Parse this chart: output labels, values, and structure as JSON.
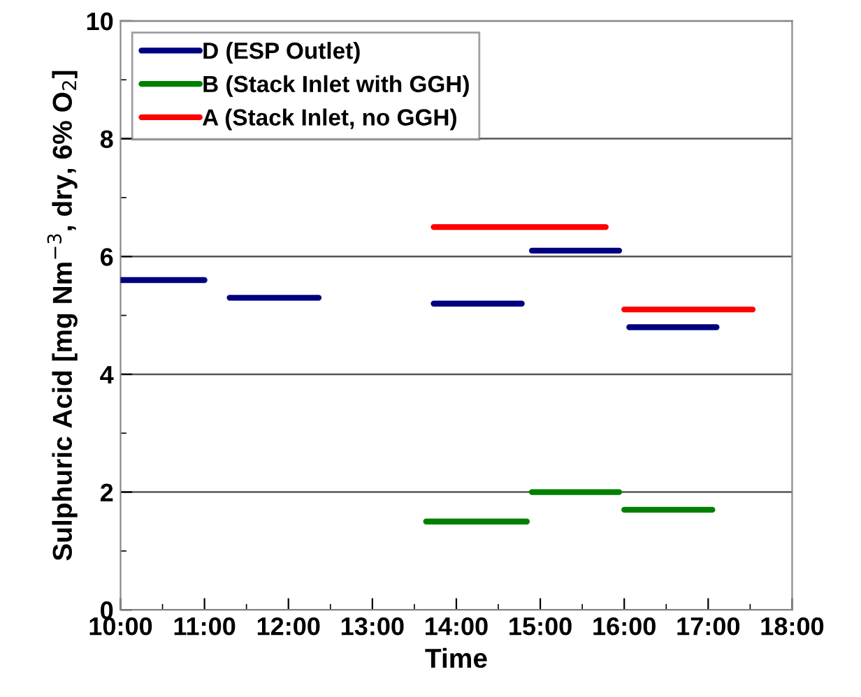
{
  "chart_data": {
    "type": "line",
    "xlabel": "Time",
    "ylabel": "Sulphuric Acid [mg Nm$^{−3}$, dry, 6% O$_{2}$]",
    "xlim": [
      10,
      18
    ],
    "xticks": [
      {
        "value": 10,
        "label": "10:00"
      },
      {
        "value": 11,
        "label": "11:00"
      },
      {
        "value": 12,
        "label": "12:00"
      },
      {
        "value": 13,
        "label": "13:00"
      },
      {
        "value": 14,
        "label": "14:00"
      },
      {
        "value": 15,
        "label": "15:00"
      },
      {
        "value": 16,
        "label": "16:00"
      },
      {
        "value": 17,
        "label": "17:00"
      },
      {
        "value": 18,
        "label": "18:00"
      }
    ],
    "ylim": [
      0,
      10
    ],
    "yticks": [
      0,
      2,
      4,
      6,
      8,
      10
    ],
    "grid": "y",
    "legend": "top left",
    "marker": "none",
    "line_style": "solid",
    "series": [
      {
        "name": "D (ESP Outlet)",
        "color": "#000080",
        "x": [
          10,
          11,
          11.15,
          11.3,
          12.36,
          13,
          13.73,
          14.78,
          14.85,
          14.9,
          15.94,
          16.0,
          16.06,
          17.1
        ],
        "values": [
          5.6,
          5.6,
          null,
          5.3,
          5.3,
          null,
          5.2,
          5.2,
          null,
          6.1,
          6.1,
          null,
          4.8,
          4.8
        ]
      },
      {
        "name": "B (Stack Inlet with GGH)",
        "color": "#008000",
        "x": [
          13.64,
          14.84,
          14.87,
          14.9,
          15.94,
          15.97,
          16.0,
          17.05
        ],
        "values": [
          1.5,
          1.5,
          null,
          2.0,
          2.0,
          null,
          1.7,
          1.7
        ]
      },
      {
        "name": "A (Stack Inlet, no GGH)",
        "color": "#ff0000",
        "x": [
          13.73,
          15.78,
          15.9,
          16.0,
          17.53
        ],
        "values": [
          6.5,
          6.5,
          null,
          5.1,
          5.1
        ]
      }
    ]
  }
}
